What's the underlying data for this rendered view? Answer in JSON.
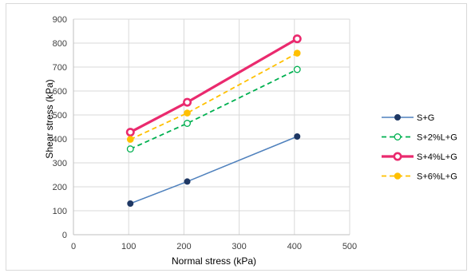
{
  "chart_data": {
    "type": "line",
    "title": "",
    "xlabel": "Normal stress (kPa)",
    "ylabel": "Shear stress (kPa)",
    "xlim": [
      0,
      500
    ],
    "ylim": [
      0,
      900
    ],
    "xticks": [
      "0",
      "100",
      "200",
      "300",
      "400",
      "500"
    ],
    "yticks": [
      "0",
      "100",
      "200",
      "300",
      "400",
      "500",
      "600",
      "700",
      "800",
      "900"
    ],
    "grid": true,
    "legend_position": "right",
    "series": [
      {
        "name": "S+G",
        "color": "#4f81bd",
        "marker": "filled-circle-navy",
        "line": "solid-thin",
        "x": [
          103,
          206,
          405
        ],
        "y": [
          130,
          222,
          410
        ]
      },
      {
        "name": "S+2%L+G",
        "color": "#00b050",
        "marker": "open-circle",
        "line": "dashed",
        "x": [
          103,
          206,
          405
        ],
        "y": [
          358,
          465,
          690
        ]
      },
      {
        "name": "S+4%L+G",
        "color": "#ea2a6e",
        "marker": "open-circle-thick",
        "line": "solid-thick",
        "x": [
          103,
          206,
          405
        ],
        "y": [
          428,
          553,
          818
        ]
      },
      {
        "name": "S+6%L+G",
        "color": "#ffc000",
        "marker": "filled-circle",
        "line": "dashed",
        "x": [
          103,
          206,
          405
        ],
        "y": [
          398,
          508,
          758
        ]
      }
    ]
  }
}
